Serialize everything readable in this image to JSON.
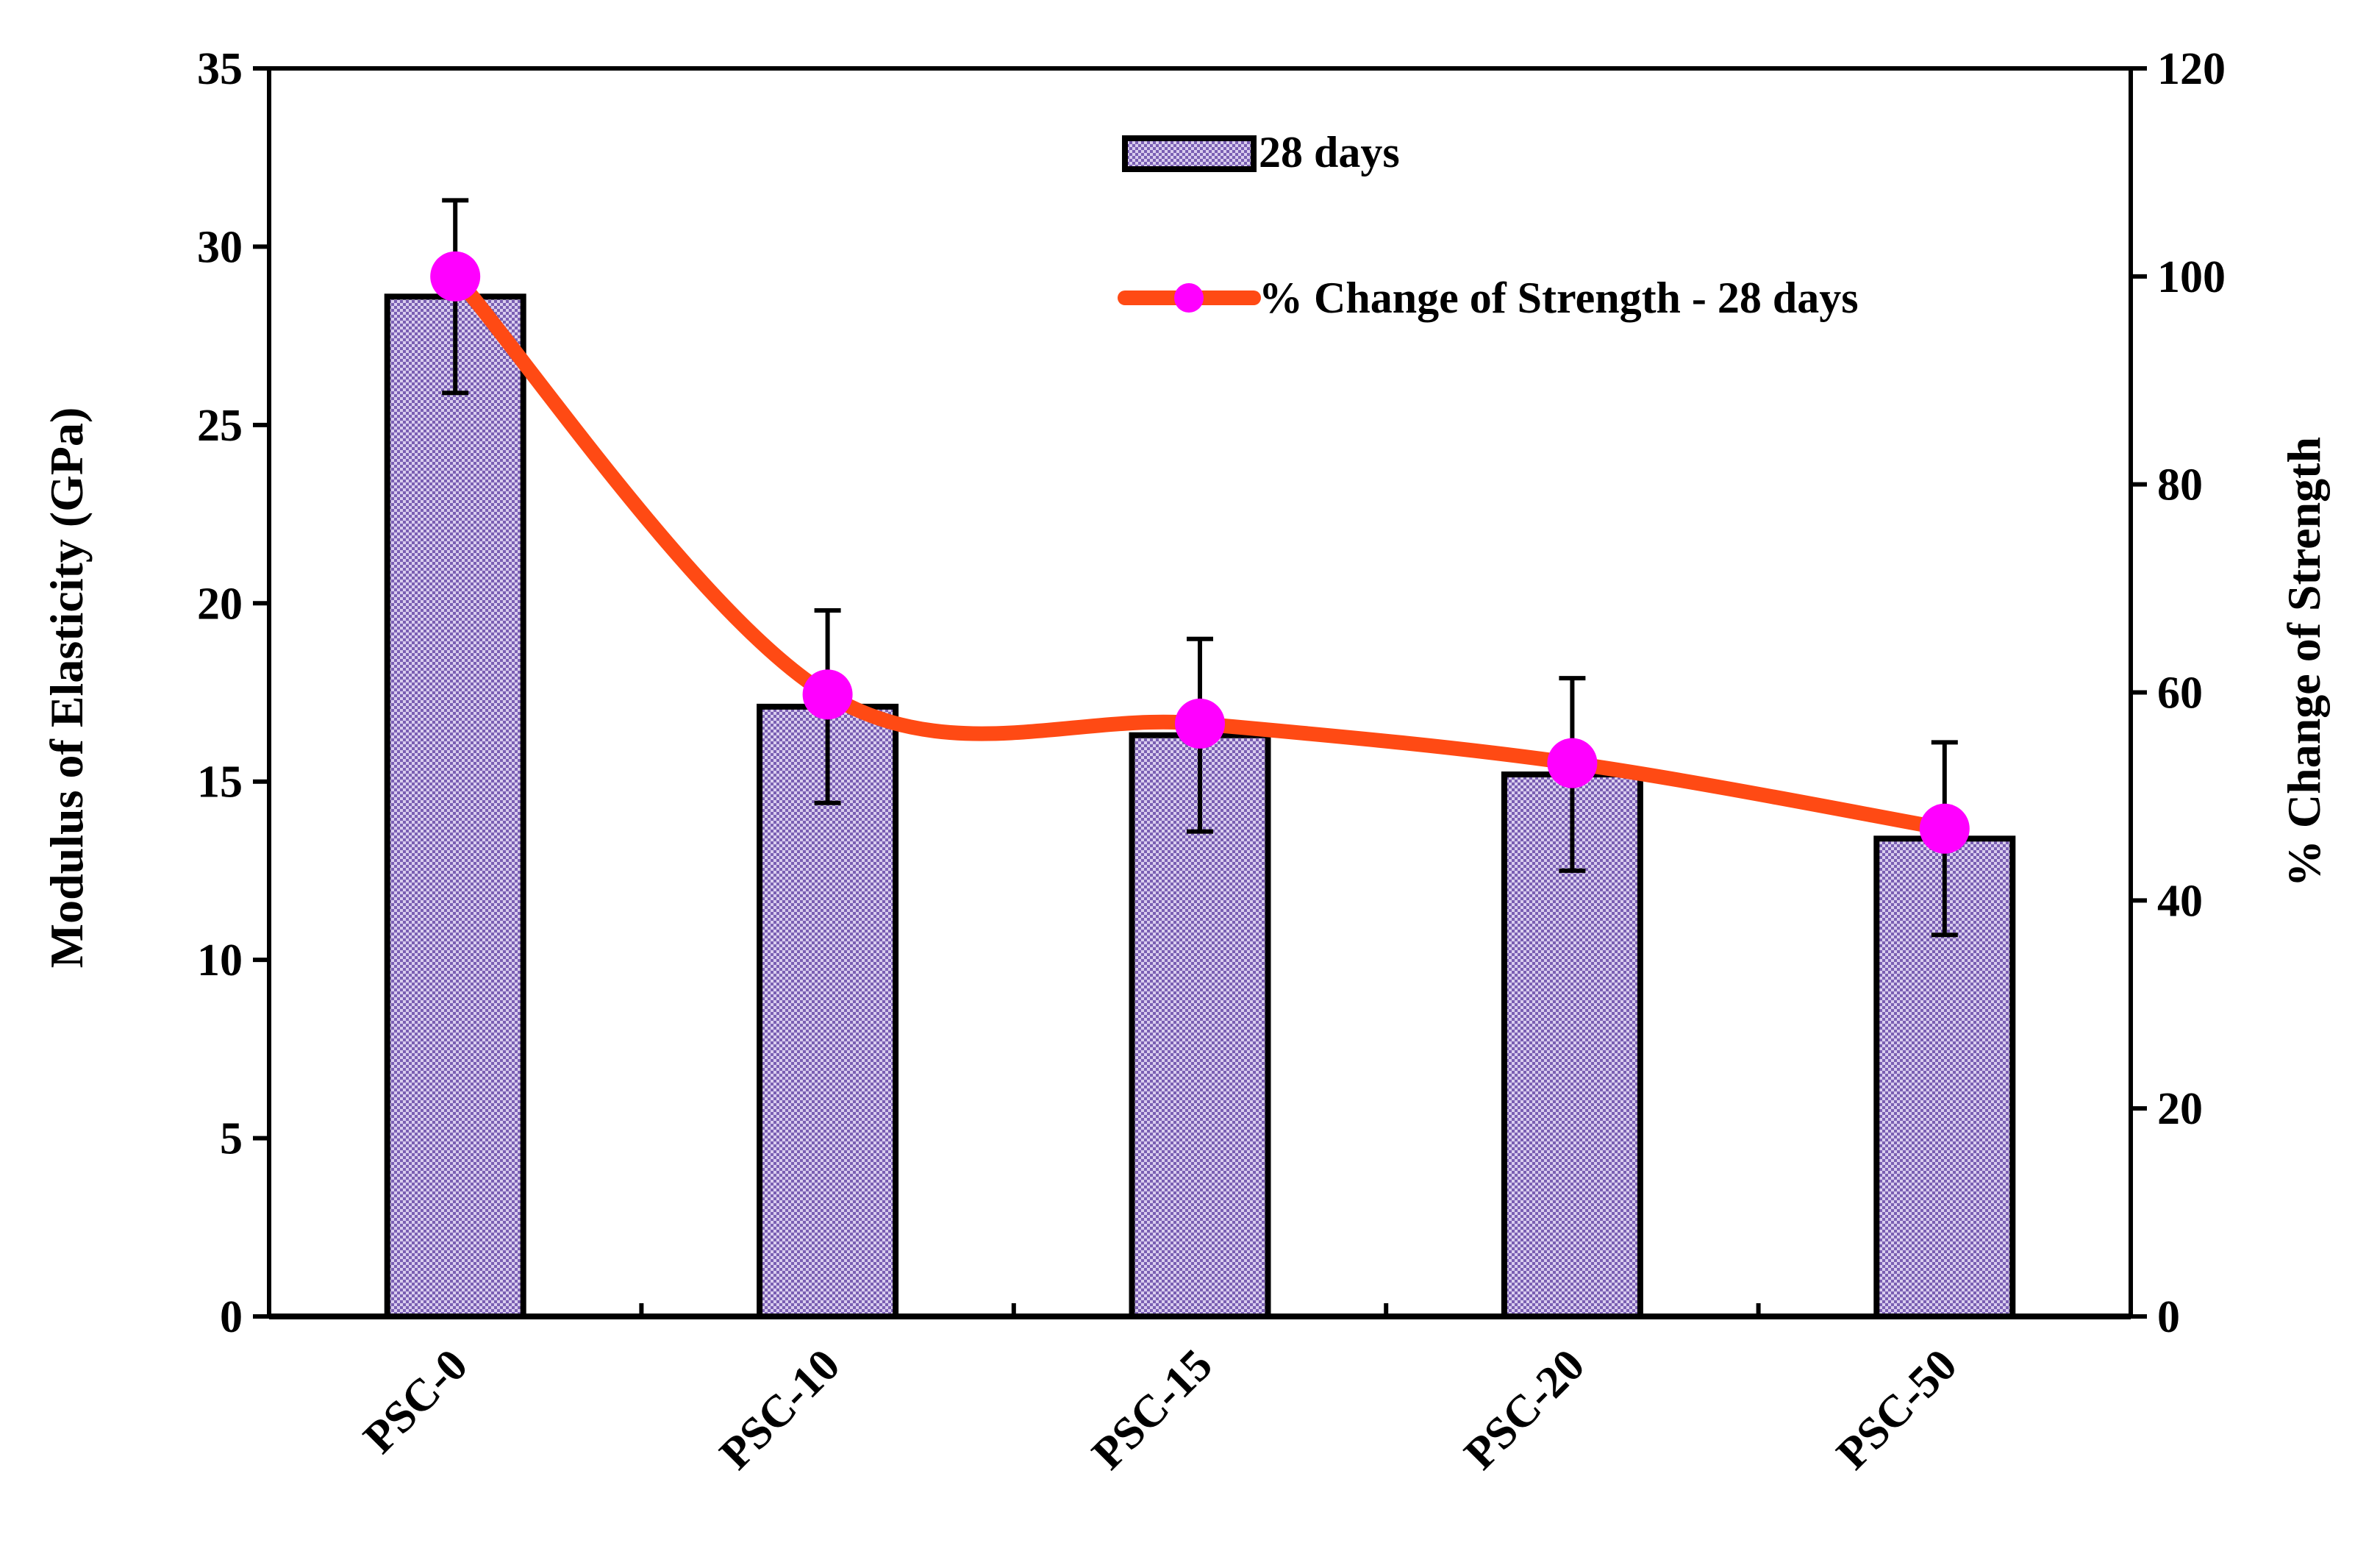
{
  "chart_data": {
    "type": "bar",
    "categories": [
      "PSC-0",
      "PSC-10",
      "PSC-15",
      "PSC-20",
      "PSC-50"
    ],
    "ylabel": "Modulus of Elasticity (GPa)",
    "y2label": "% Change of Strength",
    "ylim": [
      0,
      35
    ],
    "y2lim": [
      0,
      120
    ],
    "yticks": [
      "0",
      "5",
      "10",
      "15",
      "20",
      "25",
      "30",
      "35"
    ],
    "y2ticks": [
      "0",
      "20",
      "40",
      "60",
      "80",
      "100",
      "120"
    ],
    "legend_position": "top-center",
    "series": [
      {
        "name": "28 days",
        "kind": "bar",
        "axis": "left",
        "values": [
          28.6,
          17.1,
          16.3,
          15.2,
          13.4
        ],
        "error": [
          2.7,
          2.7,
          2.7,
          2.7,
          2.7
        ],
        "color": "#9b86c9"
      },
      {
        "name": "% Change of Strength - 28 days",
        "kind": "line",
        "axis": "right",
        "values": [
          100,
          59.8,
          57,
          53.2,
          46.9
        ],
        "line_color": "#ff4a14",
        "marker_color": "#ff00ff"
      }
    ]
  }
}
